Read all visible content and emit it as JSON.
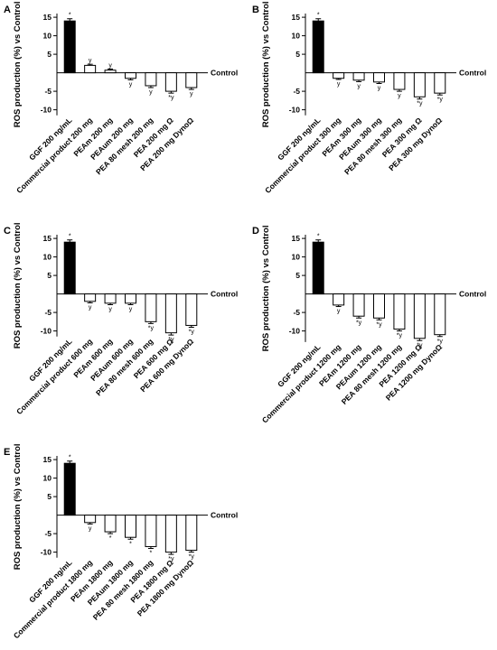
{
  "chart_data": [
    {
      "type": "bar",
      "title": "A",
      "ylabel": "ROS production (%) vs Control",
      "baseline_label": "Control",
      "categories": [
        "GGF 200 ng/mL",
        "Commercial product 200 mg",
        "PEAm 200 mg",
        "PEAum 200 mg",
        "PEA 80 mesh 200 mg",
        "PEA 200 mg Ω",
        "PEA 200 mg DynoΩ"
      ],
      "values": [
        14,
        2,
        0.7,
        -1.5,
        -3.5,
        -5,
        -4
      ],
      "errors": [
        0.6,
        0.3,
        0.3,
        0.4,
        0.5,
        0.5,
        0.5
      ],
      "annotations": [
        "*",
        "y",
        "y",
        "y",
        "y",
        "*y",
        "y"
      ],
      "colors": [
        "#000000",
        "#ffffff",
        "#ffffff",
        "#ffffff",
        "#ffffff",
        "#ffffff",
        "#ffffff"
      ],
      "ylim": [
        -11.5,
        16
      ],
      "yticks": [
        15,
        10,
        5,
        -5,
        -10
      ]
    },
    {
      "type": "bar",
      "title": "B",
      "ylabel": "ROS production (%) vs Control",
      "baseline_label": "Control",
      "categories": [
        "GGF 200 ng/mL",
        "Commercial product 300 mg",
        "PEAm 300 mg",
        "PEAum 300 mg",
        "PEA 80 mesh 300 mg",
        "PEA 300 mg Ω",
        "PEA 300 mg DynoΩ"
      ],
      "values": [
        14,
        -1.5,
        -2,
        -2.5,
        -4.5,
        -6.5,
        -5.5
      ],
      "errors": [
        0.6,
        0.3,
        0.4,
        0.4,
        0.5,
        0.6,
        0.5
      ],
      "annotations": [
        "*",
        "y",
        "y",
        "y",
        "y",
        "*y",
        "*y"
      ],
      "colors": [
        "#000000",
        "#ffffff",
        "#ffffff",
        "#ffffff",
        "#ffffff",
        "#ffffff",
        "#ffffff"
      ],
      "ylim": [
        -11.5,
        16
      ],
      "yticks": [
        15,
        10,
        5,
        -5,
        -10
      ]
    },
    {
      "type": "bar",
      "title": "C",
      "ylabel": "ROS production (%) vs Control",
      "baseline_label": "Control",
      "categories": [
        "GGF 200 ng/mL",
        "Commercial product 600 mg",
        "PEAm 600 mg",
        "PEAum 600 mg",
        "PEA 80 mesh 600 mg",
        "PEA 600 mg Ω",
        "PEA 600 mg DynoΩ"
      ],
      "values": [
        14,
        -2,
        -2.5,
        -2.5,
        -7.5,
        -10.5,
        -8.5
      ],
      "errors": [
        0.6,
        0.4,
        0.4,
        0.4,
        0.5,
        0.6,
        0.5
      ],
      "annotations": [
        "*",
        "y",
        "y",
        "y",
        "*y",
        "*y",
        "*y"
      ],
      "colors": [
        "#000000",
        "#ffffff",
        "#ffffff",
        "#ffffff",
        "#ffffff",
        "#ffffff",
        "#ffffff"
      ],
      "ylim": [
        -11.5,
        16
      ],
      "yticks": [
        15,
        10,
        5,
        -5,
        -10
      ]
    },
    {
      "type": "bar",
      "title": "D",
      "ylabel": "ROS production (%) vs Control",
      "baseline_label": "Control",
      "categories": [
        "GGF 200 ng/mL",
        "Commercial product 1200 mg",
        "PEAm 1200 mg",
        "PEAum 1200 mg",
        "PEA 80 mesh 1200 mg",
        "PEA 1200 mg Ω",
        "PEA 1200 mg DynoΩ"
      ],
      "values": [
        14,
        -3,
        -6,
        -6.5,
        -9.5,
        -12,
        -11
      ],
      "errors": [
        0.6,
        0.4,
        0.5,
        0.5,
        0.5,
        0.6,
        0.5
      ],
      "annotations": [
        "*",
        "y",
        "*y",
        "*y",
        "*y",
        "*y",
        "*y"
      ],
      "colors": [
        "#000000",
        "#ffffff",
        "#ffffff",
        "#ffffff",
        "#ffffff",
        "#ffffff",
        "#ffffff"
      ],
      "ylim": [
        -13,
        16
      ],
      "yticks": [
        15,
        10,
        5,
        -5,
        -10
      ]
    },
    {
      "type": "bar",
      "title": "E",
      "ylabel": "ROS production (%) vs Control",
      "baseline_label": "Control",
      "categories": [
        "GGF 200 ng/mL",
        "Commercial product 1800 mg",
        "PEAm 1800 mg",
        "PEAum 1800 mg",
        "PEA 80 mesh 1800 mg",
        "PEA 1800 mg Ω",
        "PEA 1800 mg DynoΩ"
      ],
      "values": [
        14,
        -2,
        -4.5,
        -6,
        -8.5,
        -10,
        -9.5
      ],
      "errors": [
        0.6,
        0.4,
        0.5,
        0.5,
        0.5,
        0.6,
        0.5
      ],
      "annotations": [
        "*",
        "y",
        "*",
        "*",
        "*",
        "*y",
        "*y"
      ],
      "colors": [
        "#000000",
        "#ffffff",
        "#ffffff",
        "#ffffff",
        "#ffffff",
        "#ffffff",
        "#ffffff"
      ],
      "ylim": [
        -11.5,
        16
      ],
      "yticks": [
        15,
        10,
        5,
        -5,
        -10
      ]
    }
  ]
}
